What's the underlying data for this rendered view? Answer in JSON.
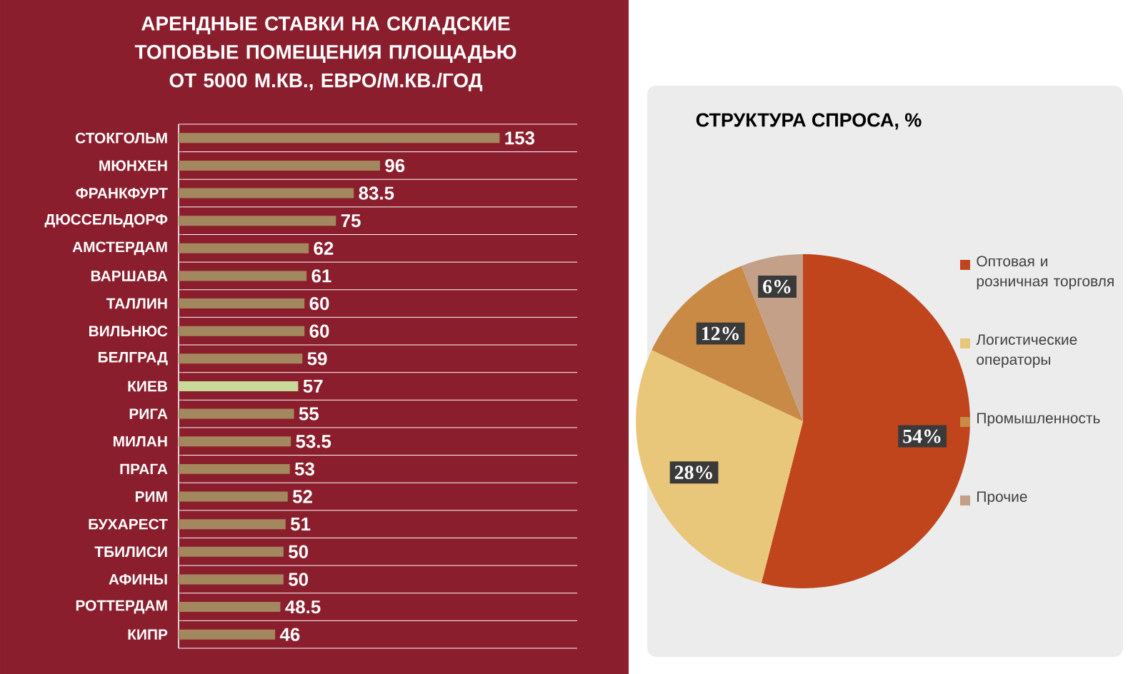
{
  "chart_data": [
    {
      "type": "bar",
      "orientation": "horizontal",
      "title": "АРЕНДНЫЕ СТАВКИ НА СКЛАДСКИЕ ТОПОВЫЕ ПОМЕЩЕНИЯ ПЛОЩАДЬЮ ОТ 5000 М.КВ., ЕВРО/М.КВ./ГОД",
      "categories": [
        "СТОКГОЛЬМ",
        "МЮНХЕН",
        "ФРАНКФУРТ",
        "ДЮССЕЛЬДОРФ",
        "АМСТЕРДАМ",
        "ВАРШАВА",
        "ТАЛЛИН",
        "ВИЛЬНЮС",
        "БЕЛГРАД",
        "КИЕВ",
        "РИГА",
        "МИЛАН",
        "ПРАГА",
        "РИМ",
        "БУХАРЕСТ",
        "ТБИЛИСИ",
        "АФИНЫ",
        "РОТТЕРДАМ",
        "КИПР"
      ],
      "values": [
        153,
        96,
        83.5,
        75,
        62,
        61,
        60,
        60,
        59,
        57,
        55,
        53.5,
        53,
        52,
        51,
        50,
        50,
        48.5,
        46
      ],
      "colors": [
        "#a3875e",
        "#a3875e",
        "#a3875e",
        "#a3875e",
        "#a3875e",
        "#a3875e",
        "#a3875e",
        "#a3875e",
        "#a3875e",
        "#c9d99a",
        "#a3875e",
        "#a3875e",
        "#a3875e",
        "#a3875e",
        "#a3875e",
        "#a3875e",
        "#a3875e",
        "#a3875e",
        "#a3875e"
      ],
      "xlim": [
        0,
        190
      ],
      "data_labels": true,
      "grid": "y",
      "tick_labels": "y"
    },
    {
      "type": "pie",
      "title": "СТРУКТУРА СПРОСА, %",
      "categories": [
        "Оптовая и розничная торговля",
        "Логистические операторы",
        "Промышленность",
        "Прочие"
      ],
      "values": [
        54,
        28,
        12,
        6
      ],
      "colors": [
        "#c0441c",
        "#e8c77a",
        "#c88a45",
        "#c4a088"
      ],
      "value_labels": [
        "54%",
        "28%",
        "12%",
        "6%"
      ],
      "legend": "right"
    }
  ]
}
